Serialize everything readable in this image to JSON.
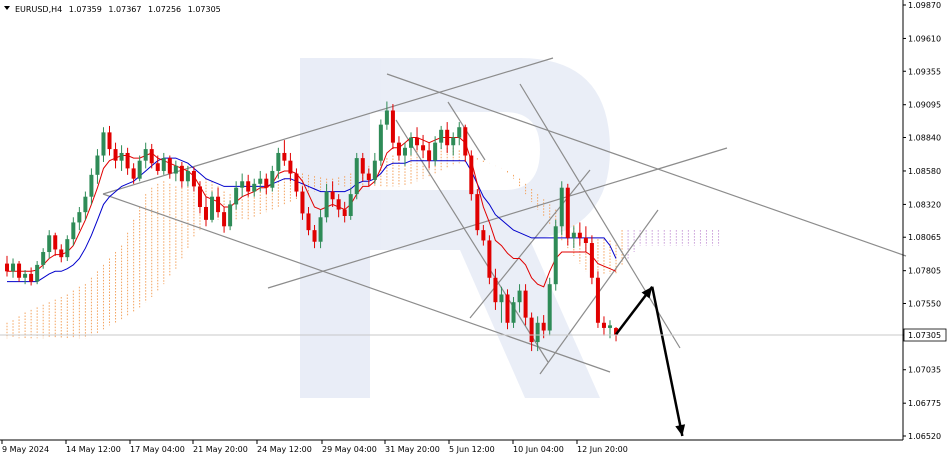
{
  "header": {
    "symbol": "EURUSD,H4",
    "open": "1.07359",
    "high": "1.07367",
    "low": "1.07256",
    "close": "1.07305"
  },
  "chart_data": {
    "type": "candlestick",
    "title": "EURUSD,H4 1.07359 1.07367 1.07256 1.07305",
    "y_ticks": [
      "1.09870",
      "1.09610",
      "1.09355",
      "1.09095",
      "1.08840",
      "1.08580",
      "1.08320",
      "1.08065",
      "1.07805",
      "1.07550",
      "1.07305",
      "1.07035",
      "1.06775",
      "1.06520"
    ],
    "y_range": [
      1.0652,
      1.0987
    ],
    "current_price": "1.07305",
    "x_ticks": [
      "9 May 2024",
      "14 May 12:00",
      "17 May 04:00",
      "21 May 20:00",
      "24 May 12:00",
      "29 May 04:00",
      "31 May 20:00",
      "5 Jun 12:00",
      "10 Jun 04:00",
      "12 Jun 20:00"
    ],
    "candles": [
      [
        1.0786,
        1.0792,
        1.0776,
        1.078
      ],
      [
        1.078,
        1.079,
        1.0775,
        1.0786
      ],
      [
        1.0786,
        1.0788,
        1.0772,
        1.0775
      ],
      [
        1.0775,
        1.0781,
        1.077,
        1.0778
      ],
      [
        1.0778,
        1.0783,
        1.0769,
        1.0772
      ],
      [
        1.0772,
        1.0788,
        1.077,
        1.0785
      ],
      [
        1.0785,
        1.0798,
        1.0782,
        1.0795
      ],
      [
        1.0795,
        1.0812,
        1.079,
        1.0808
      ],
      [
        1.0808,
        1.081,
        1.0792,
        1.0797
      ],
      [
        1.0797,
        1.0801,
        1.0787,
        1.0791
      ],
      [
        1.0791,
        1.0808,
        1.0788,
        1.0805
      ],
      [
        1.0805,
        1.0822,
        1.08,
        1.0818
      ],
      [
        1.0818,
        1.083,
        1.0812,
        1.0826
      ],
      [
        1.0826,
        1.0842,
        1.082,
        1.0838
      ],
      [
        1.0838,
        1.086,
        1.0832,
        1.0855
      ],
      [
        1.0855,
        1.0875,
        1.0848,
        1.087
      ],
      [
        1.087,
        1.0892,
        1.0865,
        1.0888
      ],
      [
        1.0888,
        1.0893,
        1.087,
        1.0875
      ],
      [
        1.0875,
        1.088,
        1.086,
        1.0866
      ],
      [
        1.0866,
        1.0878,
        1.0858,
        1.0872
      ],
      [
        1.0872,
        1.0876,
        1.0855,
        1.086
      ],
      [
        1.086,
        1.0864,
        1.0848,
        1.0852
      ],
      [
        1.0852,
        1.087,
        1.085,
        1.0866
      ],
      [
        1.0866,
        1.088,
        1.086,
        1.0875
      ],
      [
        1.0875,
        1.0879,
        1.086,
        1.0864
      ],
      [
        1.0864,
        1.087,
        1.0855,
        1.0858
      ],
      [
        1.0858,
        1.0872,
        1.0855,
        1.0868
      ],
      [
        1.0868,
        1.087,
        1.0852,
        1.0856
      ],
      [
        1.0856,
        1.0866,
        1.085,
        1.0862
      ],
      [
        1.0862,
        1.0865,
        1.0845,
        1.085
      ],
      [
        1.085,
        1.0862,
        1.0846,
        1.0858
      ],
      [
        1.0858,
        1.0861,
        1.0842,
        1.0846
      ],
      [
        1.0846,
        1.085,
        1.0825,
        1.083
      ],
      [
        1.083,
        1.0838,
        1.0815,
        1.082
      ],
      [
        1.082,
        1.0842,
        1.0818,
        1.0838
      ],
      [
        1.0838,
        1.0845,
        1.0822,
        1.0826
      ],
      [
        1.0826,
        1.083,
        1.081,
        1.0815
      ],
      [
        1.0815,
        1.0835,
        1.0812,
        1.0832
      ],
      [
        1.0832,
        1.085,
        1.0828,
        1.0845
      ],
      [
        1.0845,
        1.0856,
        1.0838,
        1.085
      ],
      [
        1.085,
        1.0855,
        1.0838,
        1.0842
      ],
      [
        1.0842,
        1.0852,
        1.0838,
        1.0848
      ],
      [
        1.0848,
        1.0858,
        1.0842,
        1.0852
      ],
      [
        1.0852,
        1.0856,
        1.084,
        1.0845
      ],
      [
        1.0845,
        1.0862,
        1.0842,
        1.0858
      ],
      [
        1.0858,
        1.0876,
        1.0852,
        1.0872
      ],
      [
        1.0872,
        1.0882,
        1.0862,
        1.0866
      ],
      [
        1.0866,
        1.0872,
        1.085,
        1.0856
      ],
      [
        1.0856,
        1.086,
        1.0838,
        1.0842
      ],
      [
        1.0842,
        1.0846,
        1.082,
        1.0825
      ],
      [
        1.0825,
        1.083,
        1.0808,
        1.0812
      ],
      [
        1.0812,
        1.0816,
        1.0798,
        1.0803
      ],
      [
        1.0803,
        1.0828,
        1.0798,
        1.0822
      ],
      [
        1.0822,
        1.0848,
        1.0818,
        1.0842
      ],
      [
        1.0842,
        1.085,
        1.083,
        1.0836
      ],
      [
        1.0836,
        1.084,
        1.0822,
        1.0828
      ],
      [
        1.0828,
        1.0834,
        1.0818,
        1.0823
      ],
      [
        1.0823,
        1.0845,
        1.082,
        1.084
      ],
      [
        1.084,
        1.0872,
        1.0836,
        1.0868
      ],
      [
        1.0868,
        1.0872,
        1.085,
        1.0856
      ],
      [
        1.0856,
        1.086,
        1.0846,
        1.0851
      ],
      [
        1.0851,
        1.0872,
        1.0848,
        1.0866
      ],
      [
        1.0866,
        1.0898,
        1.0862,
        1.0894
      ],
      [
        1.0894,
        1.0912,
        1.089,
        1.0905
      ],
      [
        1.0905,
        1.091,
        1.0875,
        1.088
      ],
      [
        1.088,
        1.0885,
        1.0866,
        1.087
      ],
      [
        1.087,
        1.088,
        1.0862,
        1.0876
      ],
      [
        1.0876,
        1.0888,
        1.087,
        1.0884
      ],
      [
        1.0884,
        1.0892,
        1.0874,
        1.0878
      ],
      [
        1.0878,
        1.0886,
        1.0868,
        1.0874
      ],
      [
        1.0874,
        1.088,
        1.086,
        1.0866
      ],
      [
        1.0866,
        1.0885,
        1.0862,
        1.088
      ],
      [
        1.088,
        1.0893,
        1.0875,
        1.089
      ],
      [
        1.089,
        1.0896,
        1.0872,
        1.0878
      ],
      [
        1.0878,
        1.0888,
        1.087,
        1.0884
      ],
      [
        1.0884,
        1.0896,
        1.0878,
        1.0892
      ],
      [
        1.0892,
        1.0894,
        1.0865,
        1.087
      ],
      [
        1.087,
        1.0874,
        1.0835,
        1.084
      ],
      [
        1.084,
        1.0844,
        1.0808,
        1.0812
      ],
      [
        1.0812,
        1.0816,
        1.08,
        1.0804
      ],
      [
        1.0804,
        1.0808,
        1.077,
        1.0775
      ],
      [
        1.0775,
        1.0782,
        1.075,
        1.0756
      ],
      [
        1.0756,
        1.0768,
        1.074,
        1.0762
      ],
      [
        1.0762,
        1.0766,
        1.0735,
        1.074
      ],
      [
        1.074,
        1.076,
        1.0736,
        1.0756
      ],
      [
        1.0756,
        1.077,
        1.0748,
        1.0765
      ],
      [
        1.0765,
        1.077,
        1.0738,
        1.0744
      ],
      [
        1.0744,
        1.0748,
        1.0718,
        1.0725
      ],
      [
        1.0725,
        1.0745,
        1.0718,
        1.074
      ],
      [
        1.074,
        1.0746,
        1.0728,
        1.0734
      ],
      [
        1.0734,
        1.0775,
        1.073,
        1.077
      ],
      [
        1.077,
        1.082,
        1.0765,
        1.0815
      ],
      [
        1.0815,
        1.085,
        1.0808,
        1.0845
      ],
      [
        1.0845,
        1.0848,
        1.08,
        1.0806
      ],
      [
        1.0806,
        1.0815,
        1.0798,
        1.081
      ],
      [
        1.081,
        1.0818,
        1.08,
        1.0806
      ],
      [
        1.0806,
        1.0815,
        1.0795,
        1.0802
      ],
      [
        1.0802,
        1.0808,
        1.077,
        1.0775
      ],
      [
        1.0775,
        1.078,
        1.0736,
        1.074
      ],
      [
        1.074,
        1.0745,
        1.073,
        1.0736
      ],
      [
        1.0736,
        1.0742,
        1.0728,
        1.0738
      ],
      [
        1.07359,
        1.07367,
        1.07256,
        1.07305
      ]
    ],
    "tenkan": [
      1.078,
      1.078,
      1.078,
      1.078,
      1.078,
      1.0781,
      1.0785,
      1.079,
      1.0793,
      1.0793,
      1.0795,
      1.08,
      1.081,
      1.082,
      1.0832,
      1.0845,
      1.086,
      1.0866,
      1.0868,
      1.087,
      1.087,
      1.0868,
      1.0868,
      1.087,
      1.0872,
      1.0868,
      1.0866,
      1.0864,
      1.0862,
      1.086,
      1.0858,
      1.0854,
      1.0846,
      1.0838,
      1.0836,
      1.0834,
      1.083,
      1.083,
      1.0834,
      1.0838,
      1.084,
      1.0842,
      1.0845,
      1.0845,
      1.0848,
      1.0856,
      1.0858,
      1.0858,
      1.0856,
      1.085,
      1.084,
      1.083,
      1.0828,
      1.083,
      1.0832,
      1.083,
      1.0828,
      1.0832,
      1.084,
      1.0846,
      1.0846,
      1.085,
      1.086,
      1.0872,
      1.0876,
      1.0876,
      1.088,
      1.0884,
      1.0884,
      1.0882,
      1.088,
      1.0882,
      1.0884,
      1.0884,
      1.0884,
      1.0884,
      1.088,
      1.0866,
      1.0848,
      1.083,
      1.0818,
      1.0804,
      1.08,
      1.0794,
      1.079,
      1.079,
      1.0785,
      1.0775,
      1.077,
      1.0768,
      1.078,
      1.079,
      1.0795,
      1.0795,
      1.0795,
      1.0795,
      1.0795,
      1.0792,
      1.0786,
      1.0784,
      1.0782,
      1.078
    ],
    "kijun": [
      1.0772,
      1.0772,
      1.0772,
      1.0772,
      1.0772,
      1.0772,
      1.0775,
      1.0778,
      1.078,
      1.078,
      1.0782,
      1.0785,
      1.079,
      1.0798,
      1.0808,
      1.082,
      1.0832,
      1.0838,
      1.0842,
      1.0846,
      1.0848,
      1.085,
      1.0854,
      1.0858,
      1.0862,
      1.0866,
      1.0868,
      1.0868,
      1.0868,
      1.0866,
      1.0864,
      1.086,
      1.0856,
      1.0852,
      1.085,
      1.0848,
      1.0846,
      1.0846,
      1.0846,
      1.0846,
      1.0846,
      1.0846,
      1.0846,
      1.0846,
      1.0848,
      1.085,
      1.0852,
      1.0852,
      1.085,
      1.0848,
      1.0846,
      1.0844,
      1.0842,
      1.0842,
      1.0842,
      1.0842,
      1.0842,
      1.0844,
      1.0848,
      1.085,
      1.085,
      1.0852,
      1.0856,
      1.0862,
      1.0864,
      1.0864,
      1.0864,
      1.0866,
      1.0866,
      1.0866,
      1.0866,
      1.0866,
      1.0866,
      1.0866,
      1.0866,
      1.0866,
      1.0866,
      1.0858,
      1.0848,
      1.0838,
      1.0832,
      1.0824,
      1.082,
      1.0816,
      1.0812,
      1.081,
      1.0808,
      1.0806,
      1.0806,
      1.0806,
      1.0806,
      1.0806,
      1.0806,
      1.0806,
      1.0806,
      1.0806,
      1.0806,
      1.0806,
      1.0806,
      1.0806,
      1.08,
      1.079
    ],
    "cloud": {
      "upper": [
        1.074,
        1.0742,
        1.0745,
        1.0748,
        1.075,
        1.0752,
        1.0754,
        1.0756,
        1.0758,
        1.076,
        1.0762,
        1.0765,
        1.0768,
        1.077,
        1.0775,
        1.078,
        1.0785,
        1.079,
        1.0795,
        1.08,
        1.081,
        1.082,
        1.083,
        1.084,
        1.0845,
        1.0848,
        1.085,
        1.0848,
        1.0846,
        1.0845,
        1.0846,
        1.0848,
        1.085,
        1.0852,
        1.085,
        1.0846,
        1.0842,
        1.084,
        1.0838,
        1.0836,
        1.0838,
        1.084,
        1.0842,
        1.0845,
        1.0848,
        1.085,
        1.0852,
        1.0854,
        1.0856,
        1.0856,
        1.0855,
        1.0854,
        1.0853,
        1.0852,
        1.0852,
        1.0853,
        1.0854,
        1.0856,
        1.0858,
        1.086,
        1.0862,
        1.0864,
        1.0866,
        1.0868,
        1.087,
        1.0872,
        1.0874,
        1.0875,
        1.0876,
        1.0876,
        1.0876,
        1.0876,
        1.0876,
        1.0876,
        1.0876,
        1.0874,
        1.0872,
        1.087,
        1.0868,
        1.0866,
        1.0864,
        1.0862,
        1.086,
        1.0858,
        1.0855,
        1.0852,
        1.0848,
        1.0844,
        1.084,
        1.0836,
        1.0832,
        1.0828,
        1.0824,
        1.082,
        1.0816,
        1.0812,
        1.0808,
        1.0806,
        1.0805,
        1.0805,
        1.0804,
        1.0803,
        1.0812,
        1.0812,
        1.0812,
        1.0812,
        1.0812,
        1.0812,
        1.0812,
        1.0812,
        1.0812,
        1.0812,
        1.0812,
        1.0812,
        1.0812,
        1.0812,
        1.0812,
        1.0812,
        1.0812,
        1.0812,
        1.0812,
        1.0812,
        1.0812,
        1.0812,
        1.0812
      ],
      "lower": [
        1.0728,
        1.0728,
        1.0728,
        1.0728,
        1.0728,
        1.0728,
        1.0728,
        1.0728,
        1.0728,
        1.0728,
        1.0728,
        1.0728,
        1.0728,
        1.0728,
        1.073,
        1.0732,
        1.0735,
        1.0738,
        1.074,
        1.0742,
        1.0745,
        1.0748,
        1.0752,
        1.0756,
        1.076,
        1.0765,
        1.077,
        1.0776,
        1.0782,
        1.079,
        1.0798,
        1.0806,
        1.0812,
        1.0816,
        1.0818,
        1.082,
        1.082,
        1.082,
        1.082,
        1.082,
        1.082,
        1.0822,
        1.0824,
        1.0826,
        1.0828,
        1.083,
        1.0832,
        1.0834,
        1.0836,
        1.0838,
        1.084,
        1.0842,
        1.0843,
        1.0844,
        1.0845,
        1.0846,
        1.0846,
        1.0846,
        1.0846,
        1.0846,
        1.0846,
        1.0846,
        1.0846,
        1.0846,
        1.0846,
        1.0846,
        1.0846,
        1.0848,
        1.085,
        1.0852,
        1.0854,
        1.0856,
        1.0858,
        1.086,
        1.0862,
        1.0864,
        1.0865,
        1.0866,
        1.0866,
        1.0865,
        1.0864,
        1.0862,
        1.086,
        1.0856,
        1.0852,
        1.0846,
        1.084,
        1.0834,
        1.0828,
        1.0822,
        1.0816,
        1.081,
        1.0804,
        1.0798,
        1.0792,
        1.0786,
        1.078,
        1.0778,
        1.0778,
        1.0778,
        1.0778,
        1.0778,
        1.0785,
        1.079,
        1.0795,
        1.08,
        1.08,
        1.08,
        1.08,
        1.08,
        1.08,
        1.08,
        1.08,
        1.08,
        1.08,
        1.08,
        1.08,
        1.08,
        1.08,
        1.08,
        1.08,
        1.08,
        1.08,
        1.08,
        1.0795
      ]
    },
    "projection_arrows": [
      {
        "from_bar": 101,
        "from_price": 1.0731,
        "to_bar": 107,
        "to_price": 1.0768
      },
      {
        "from_bar": 107,
        "from_price": 1.0768,
        "to_bar": 112,
        "to_price": 1.0652
      }
    ],
    "colors": {
      "bull": "#2e8b57",
      "bear": "#e00000",
      "tenkan": "#e00000",
      "kijun": "#0000cc",
      "cloud": "#f4a460",
      "cloud_bear": "#c89ad8",
      "trendline": "#8c8c8c",
      "watermark": "#5b7cc4"
    },
    "grid": false
  }
}
